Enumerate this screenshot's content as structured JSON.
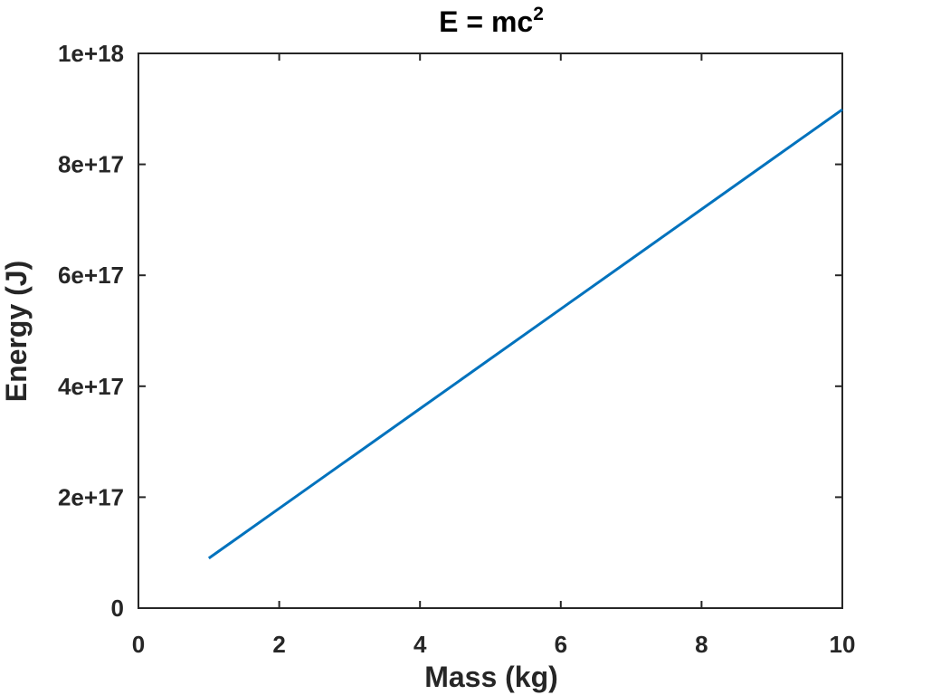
{
  "chart_data": {
    "type": "line",
    "title": "E = mc",
    "title_superscript": "2",
    "xlabel": "Mass (kg)",
    "ylabel": "Energy (J)",
    "xlim": [
      0,
      10
    ],
    "ylim": [
      0,
      1e+18
    ],
    "x_ticks": [
      0,
      2,
      4,
      6,
      8,
      10
    ],
    "x_tick_labels": [
      "0",
      "2",
      "4",
      "6",
      "8",
      "10"
    ],
    "y_ticks": [
      0,
      2e+17,
      4e+17,
      6e+17,
      8e+17,
      1e+18
    ],
    "y_tick_labels": [
      "0",
      "2e+17",
      "4e+17",
      "6e+17",
      "8e+17",
      "1e+18"
    ],
    "grid": false,
    "series": [
      {
        "name": "E",
        "color": "#0072BD",
        "x": [
          1,
          2,
          3,
          4,
          5,
          6,
          7,
          8,
          9,
          10
        ],
        "y": [
          8.98755e+16,
          1.79751e+17,
          2.69627e+17,
          3.59502e+17,
          4.49378e+17,
          5.39253e+17,
          6.29129e+17,
          7.19004e+17,
          8.0888e+17,
          8.98755e+17
        ]
      }
    ]
  },
  "colors": {
    "axis": "#262626",
    "background": "#ffffff"
  }
}
